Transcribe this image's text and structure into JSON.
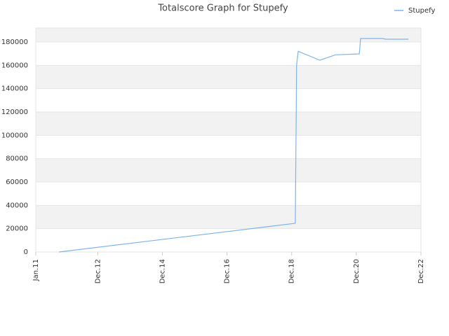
{
  "chart_data": {
    "type": "line",
    "title": "Totalscore Graph for Stupefy",
    "x": [
      2011.72,
      2019.03,
      2019.07,
      2019.12,
      2019.79,
      2020.27,
      2021.01,
      2021.05,
      2021.72,
      2021.83,
      2022.53
    ],
    "series": [
      {
        "name": "Stupefy",
        "color": "#7cb5ec",
        "values": [
          0,
          24600,
          160000,
          172000,
          164400,
          169000,
          169800,
          183000,
          183000,
          182400,
          182400
        ]
      }
    ],
    "xlim": [
      2011,
      2022.917
    ],
    "xticks": [
      {
        "value": 2011,
        "label": "Jan.11"
      },
      {
        "value": 2012.917,
        "label": "Dec.12"
      },
      {
        "value": 2014.917,
        "label": "Dec.14"
      },
      {
        "value": 2016.917,
        "label": "Dec.16"
      },
      {
        "value": 2018.917,
        "label": "Dec.18"
      },
      {
        "value": 2020.917,
        "label": "Dec.20"
      },
      {
        "value": 2022.917,
        "label": "Dec.22"
      }
    ],
    "ylim": [
      0,
      192000
    ],
    "yticks": [
      0,
      20000,
      40000,
      60000,
      80000,
      100000,
      120000,
      140000,
      160000,
      180000
    ],
    "grid": true,
    "legend": "top-right"
  }
}
